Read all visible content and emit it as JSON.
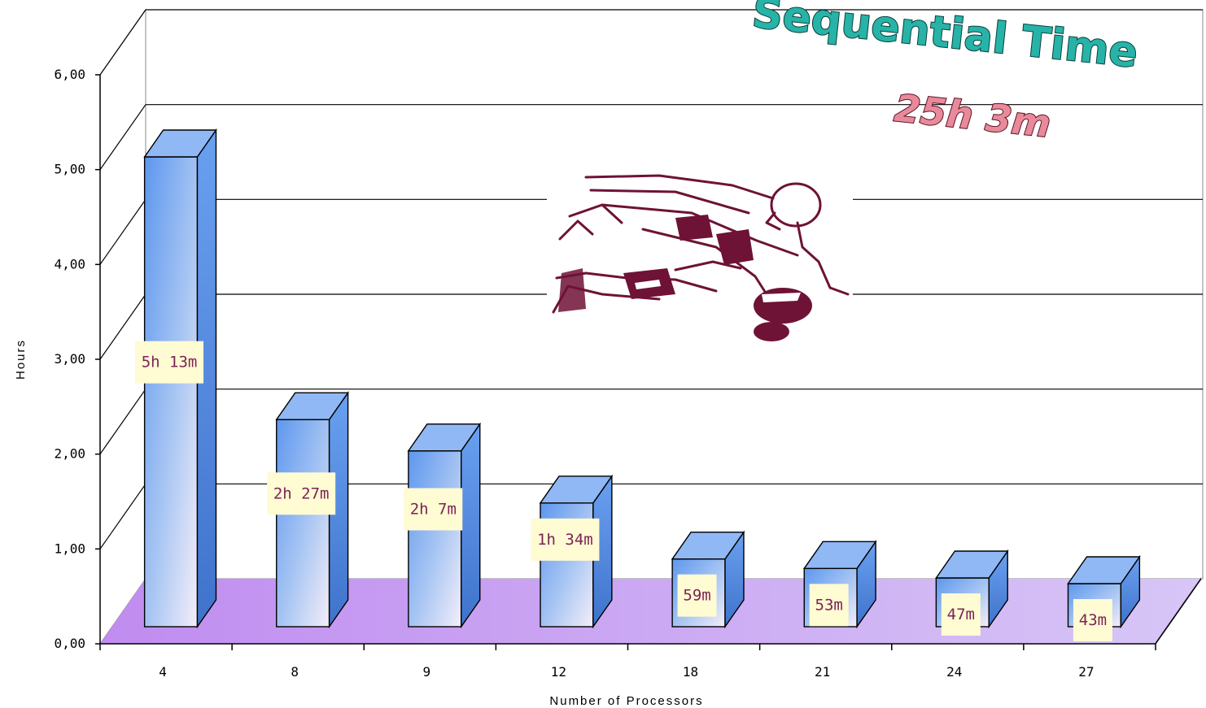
{
  "chart_data": {
    "type": "bar",
    "categories": [
      "4",
      "8",
      "9",
      "12",
      "18",
      "21",
      "24",
      "27"
    ],
    "values": [
      5.22,
      2.45,
      2.12,
      1.57,
      0.98,
      0.88,
      0.78,
      0.72
    ],
    "data_labels": [
      "5h 13m",
      "2h 27m",
      "2h 7m",
      "1h 34m",
      "59m",
      "53m",
      "47m",
      "43m"
    ],
    "title": "Sequential Time",
    "subtitle": "25h 3m",
    "xlabel": "Number of Processors",
    "ylabel": "Hours",
    "ylim": [
      0,
      6
    ],
    "y_ticks": [
      "0,00",
      "1,00",
      "2,00",
      "3,00",
      "4,00",
      "5,00",
      "6,00"
    ],
    "grid": true,
    "style": "3d-column"
  },
  "colors": {
    "bar_top": "#8fb8f4",
    "bar_front_top": "#5d97ee",
    "bar_front_bottom": "#f4eef9",
    "bar_side": "#4a82dd",
    "floor": "#c9a8f0",
    "label_box": "#fffbd2",
    "label_text": "#7a2458",
    "title": "#27b3a8",
    "subtitle": "#e88a9a",
    "clipart": "#6e1236"
  },
  "decoration": {
    "clipart": "football-player-diving-icon"
  }
}
